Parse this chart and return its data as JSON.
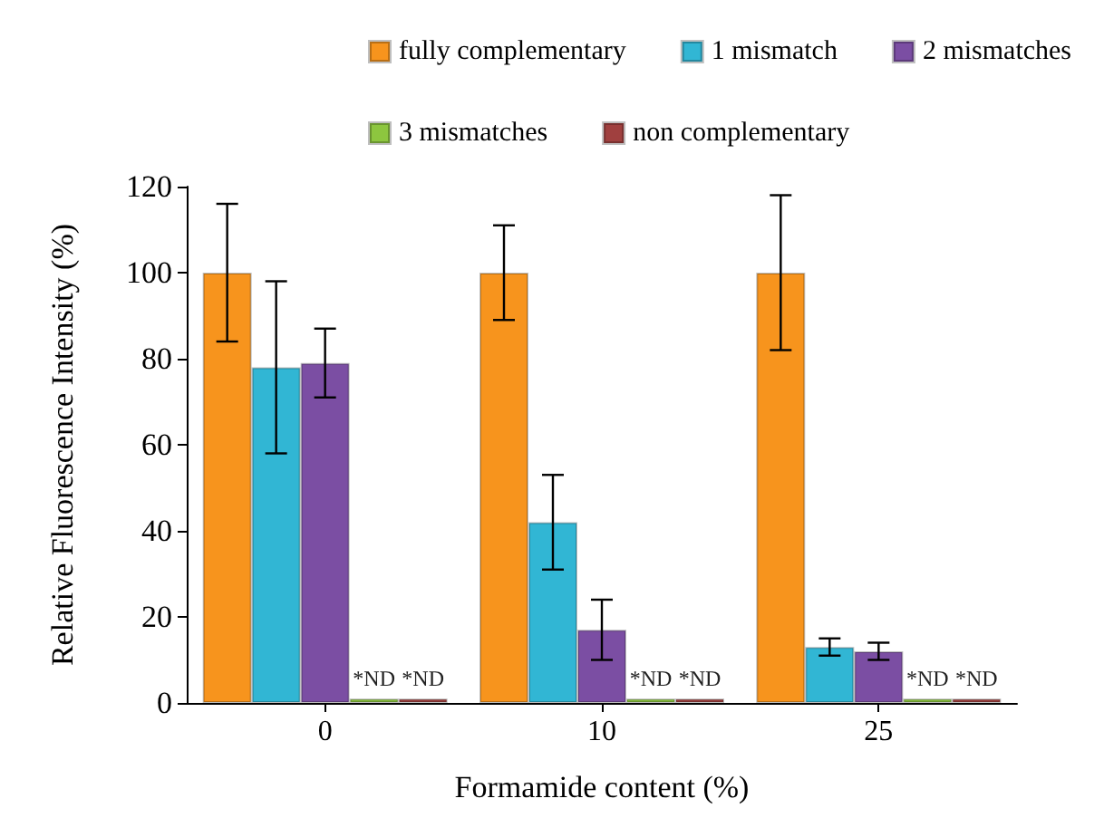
{
  "chart_data": {
    "type": "bar",
    "xlabel": "Formamide content (%)",
    "ylabel": "Relative Fluorescence Intensity (%)",
    "categories": [
      "0",
      "10",
      "25"
    ],
    "series": [
      {
        "name": "fully complementary",
        "color": "#f7941d",
        "values": [
          100,
          100,
          100
        ],
        "errors": [
          16,
          11,
          18
        ]
      },
      {
        "name": "1 mismatch",
        "color": "#31b6d4",
        "values": [
          78,
          42,
          13
        ],
        "errors": [
          20,
          11,
          2
        ]
      },
      {
        "name": "2 mismatches",
        "color": "#7b4ea3",
        "values": [
          79,
          17,
          12
        ],
        "errors": [
          8,
          7,
          2
        ]
      },
      {
        "name": "3 mismatches",
        "color": "#8dc63f",
        "values": [
          1,
          1,
          1
        ],
        "value_labels": [
          "*ND",
          "*ND",
          "*ND"
        ]
      },
      {
        "name": "non complementary",
        "color": "#a0403f",
        "values": [
          1,
          1,
          1
        ],
        "value_labels": [
          "*ND",
          "*ND",
          "*ND"
        ]
      }
    ],
    "ylim": [
      0,
      120
    ],
    "yticks": [
      0,
      20,
      40,
      60,
      80,
      100,
      120
    ],
    "grid": false,
    "legend": "top"
  }
}
